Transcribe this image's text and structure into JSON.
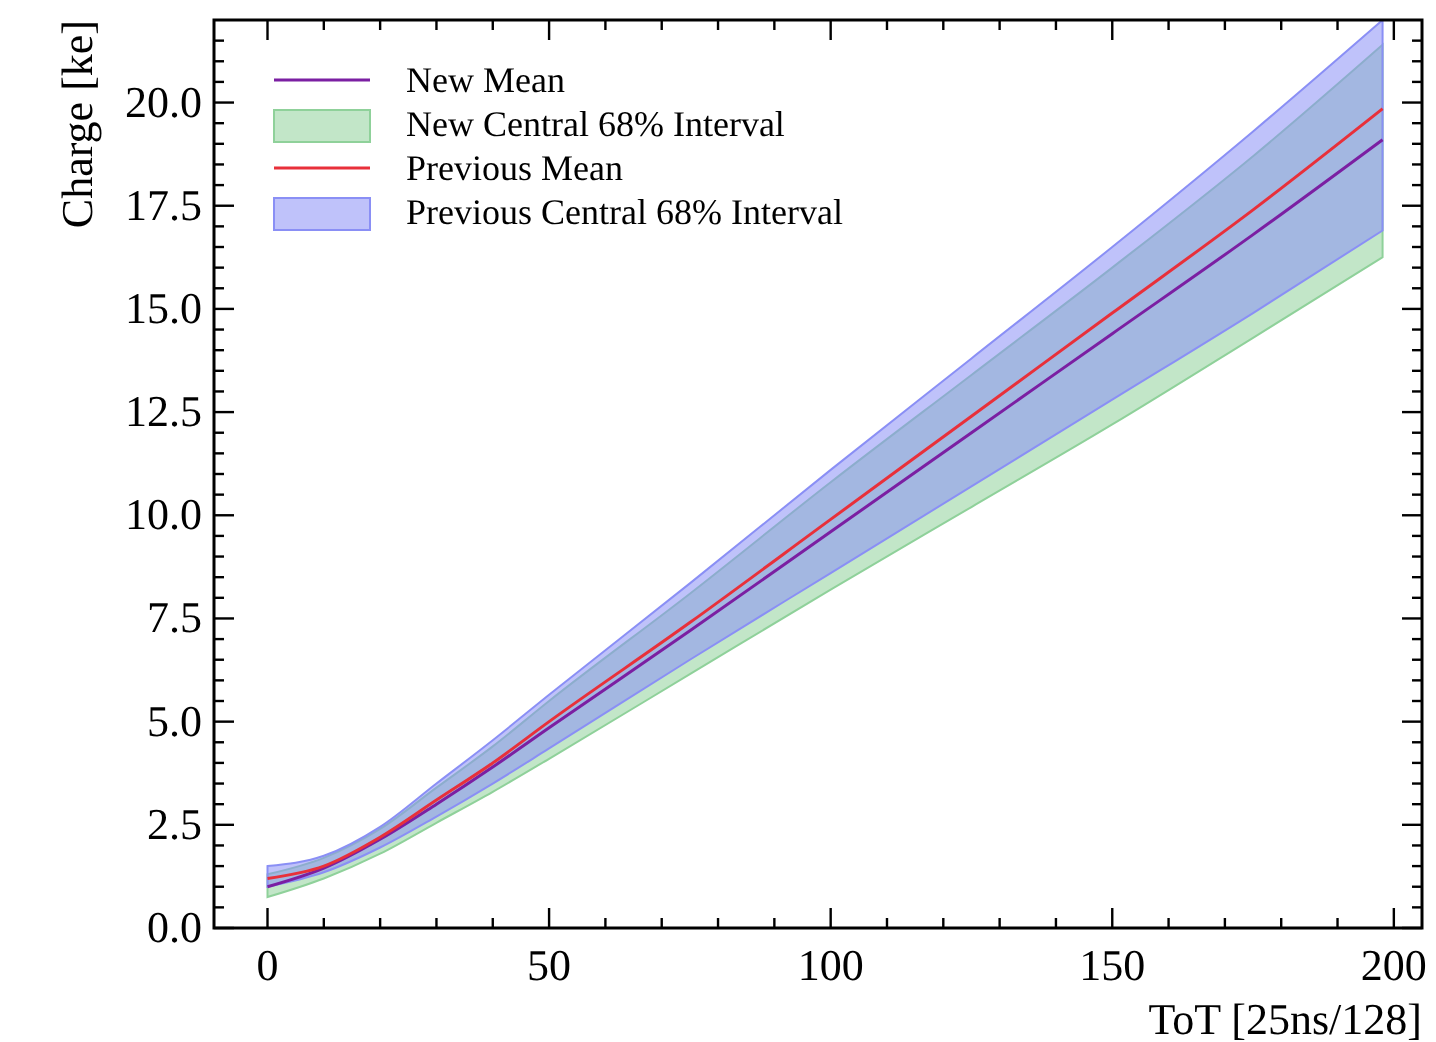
{
  "chart_data": {
    "type": "line",
    "xlabel": "ToT [25ns/128]",
    "ylabel": "Charge [ke]",
    "xlim": [
      -9.5,
      205
    ],
    "ylim": [
      0,
      22
    ],
    "xticks": [
      0,
      {
        "value": 10,
        "label": null
      },
      {
        "value": 20,
        "label": null
      },
      {
        "value": 30,
        "label": null
      },
      {
        "value": 40,
        "label": null
      },
      50,
      {
        "value": 60,
        "label": null
      },
      {
        "value": 70,
        "label": null
      },
      {
        "value": 80,
        "label": null
      },
      {
        "value": 90,
        "label": null
      },
      100,
      {
        "value": 110,
        "label": null
      },
      {
        "value": 120,
        "label": null
      },
      {
        "value": 130,
        "label": null
      },
      {
        "value": 140,
        "label": null
      },
      150,
      {
        "value": 160,
        "label": null
      },
      {
        "value": 170,
        "label": null
      },
      {
        "value": 180,
        "label": null
      },
      {
        "value": 190,
        "label": null
      },
      200
    ],
    "yticks": [
      {
        "value": 0,
        "label": "0.0"
      },
      {
        "value": 0.5,
        "label": null
      },
      {
        "value": 1,
        "label": null
      },
      {
        "value": 1.5,
        "label": null
      },
      {
        "value": 2,
        "label": null
      },
      2.5,
      {
        "value": 3,
        "label": null
      },
      {
        "value": 3.5,
        "label": null
      },
      {
        "value": 4,
        "label": null
      },
      {
        "value": 4.5,
        "label": null
      },
      {
        "value": 5,
        "label": "5.0"
      },
      {
        "value": 5.5,
        "label": null
      },
      {
        "value": 6,
        "label": null
      },
      {
        "value": 6.5,
        "label": null
      },
      {
        "value": 7,
        "label": null
      },
      7.5,
      {
        "value": 8,
        "label": null
      },
      {
        "value": 8.5,
        "label": null
      },
      {
        "value": 9,
        "label": null
      },
      {
        "value": 9.5,
        "label": null
      },
      {
        "value": 10,
        "label": "10.0"
      },
      {
        "value": 10.5,
        "label": null
      },
      {
        "value": 11,
        "label": null
      },
      {
        "value": 11.5,
        "label": null
      },
      {
        "value": 12,
        "label": null
      },
      12.5,
      {
        "value": 13,
        "label": null
      },
      {
        "value": 13.5,
        "label": null
      },
      {
        "value": 14,
        "label": null
      },
      {
        "value": 14.5,
        "label": null
      },
      {
        "value": 15,
        "label": "15.0"
      },
      {
        "value": 15.5,
        "label": null
      },
      {
        "value": 16,
        "label": null
      },
      {
        "value": 16.5,
        "label": null
      },
      {
        "value": 17,
        "label": null
      },
      17.5,
      {
        "value": 18,
        "label": null
      },
      {
        "value": 18.5,
        "label": null
      },
      {
        "value": 19,
        "label": null
      },
      {
        "value": 19.5,
        "label": null
      },
      {
        "value": 20,
        "label": "20.0"
      },
      {
        "value": 20.5,
        "label": null
      },
      {
        "value": 21,
        "label": null
      },
      {
        "value": 21.5,
        "label": null
      }
    ],
    "x": [
      0,
      10,
      20,
      30,
      40,
      50,
      75,
      100,
      125,
      150,
      175,
      198
    ],
    "legend": "top left",
    "grid": false,
    "series": [
      {
        "name": "New Mean",
        "color": "#7b1fa2",
        "values": [
          1.0,
          1.45,
          2.15,
          3.0,
          3.9,
          4.85,
          7.2,
          9.6,
          12.0,
          14.4,
          16.8,
          19.1
        ]
      },
      {
        "name": "New Central 68% Interval",
        "type": "area",
        "color": "#8fd19a",
        "values": [
          null,
          null,
          null,
          null,
          null,
          null,
          null,
          null,
          null,
          null,
          null,
          null
        ],
        "lower": [
          0.75,
          1.2,
          1.8,
          2.55,
          3.3,
          4.1,
          6.15,
          8.2,
          10.2,
          12.2,
          14.3,
          16.25
        ],
        "upper": [
          1.3,
          1.7,
          2.4,
          3.4,
          4.4,
          5.5,
          8.1,
          10.8,
          13.4,
          16.0,
          18.7,
          21.4
        ]
      },
      {
        "name": "Previous Mean",
        "color": "#e8303a",
        "values": [
          1.2,
          1.5,
          2.2,
          3.1,
          4.0,
          5.0,
          7.4,
          9.9,
          12.4,
          14.9,
          17.4,
          19.85
        ]
      },
      {
        "name": "Previous Central 68% Interval",
        "type": "area",
        "color": "#8a8ff5",
        "values": [
          null,
          null,
          null,
          null,
          null,
          null,
          null,
          null,
          null,
          null,
          null,
          null
        ],
        "lower": [
          1.0,
          1.35,
          1.95,
          2.7,
          3.5,
          4.35,
          6.5,
          8.6,
          10.7,
          12.8,
          14.9,
          16.9
        ],
        "upper": [
          1.5,
          1.75,
          2.45,
          3.5,
          4.55,
          5.65,
          8.35,
          11.1,
          13.8,
          16.5,
          19.3,
          22.0
        ]
      }
    ]
  }
}
